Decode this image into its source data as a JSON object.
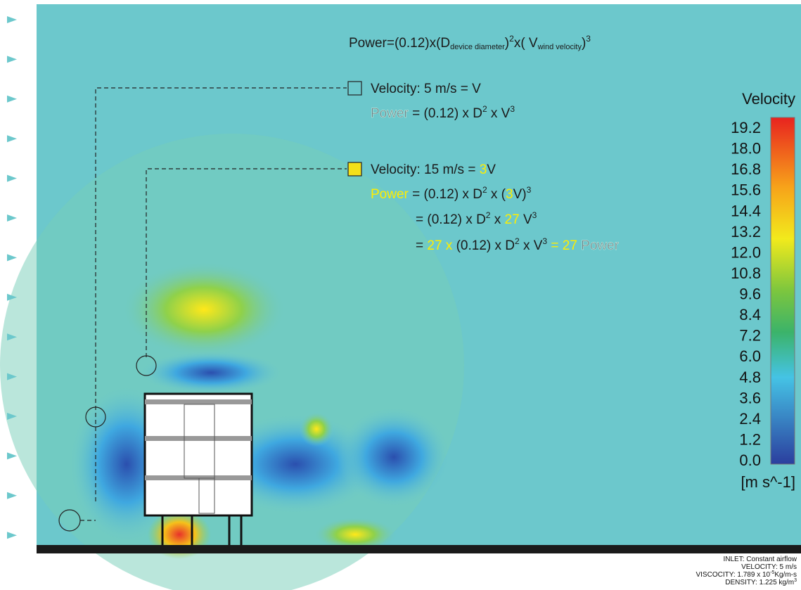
{
  "formula": [
    "Power=(0.12)x(D",
    "device diameter",
    ")",
    "2",
    "x( V",
    "wind velocity",
    ")",
    "3"
  ],
  "case_1": {
    "velocity": "Velocity:  5 m/s =  V",
    "power": [
      "Power",
      " = (0.12) x D",
      "2",
      " x V",
      "3"
    ]
  },
  "case_2": {
    "velocity": [
      "Velocity:  15 m/s = ",
      "3",
      "V"
    ],
    "power": [
      "Power",
      " = (0.12) x D",
      "2",
      " x (",
      "3",
      "V)",
      "3"
    ],
    "line_2": [
      "= (0.12) x D",
      "2",
      " x ",
      "27",
      " V",
      "3"
    ],
    "line_3": [
      "= ",
      "27 x",
      " (0.12) x D",
      "2",
      " x  V",
      "3",
      " = ",
      "27",
      " Power"
    ]
  },
  "colorbar": {
    "title": "Velocity",
    "labels": [
      "19.2",
      "18.0",
      "16.8",
      "15.6",
      "14.4",
      "13.2",
      "12.0",
      "10.8",
      "9.6",
      "8.4",
      "7.2",
      "6.0",
      "4.8",
      "3.6",
      "2.4",
      "1.2",
      "0.0"
    ],
    "units": "[m s^-1]"
  },
  "footer": {
    "inlet": "INLET: Constant airflow",
    "velocity": "VELOCITY:  5 m/s",
    "viscosity": [
      "VISCOCITY: 1.789 x 10",
      "-5",
      "Kg/m-s"
    ],
    "density": [
      "DENSITY: 1.225 kg/m",
      "3"
    ]
  }
}
